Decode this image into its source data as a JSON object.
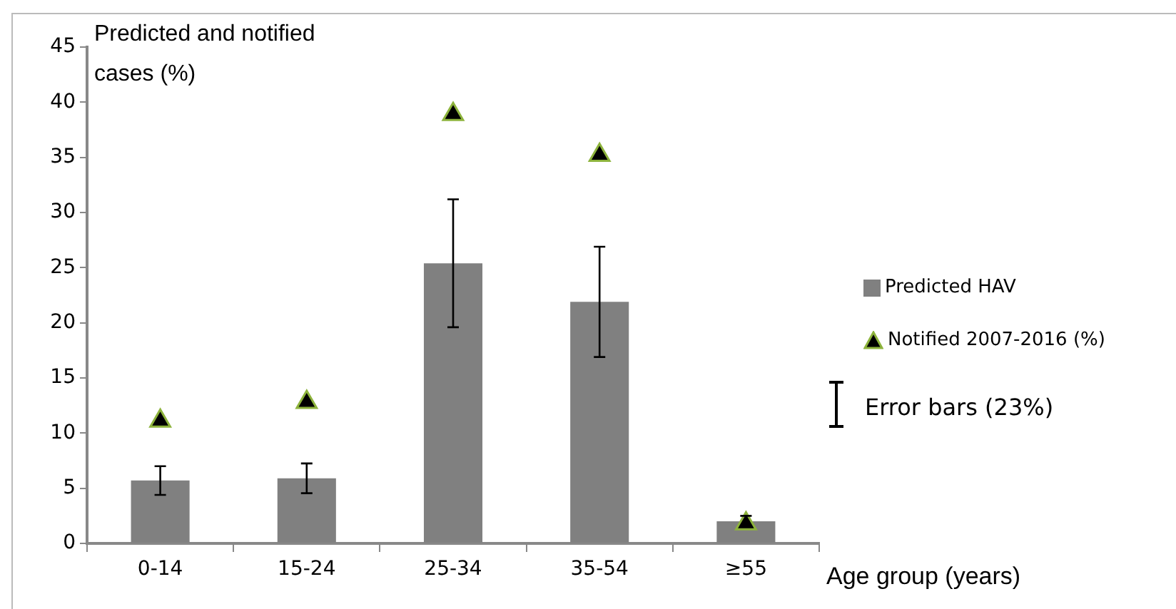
{
  "chart_data": {
    "type": "bar",
    "ylabel": "Predicted and notified cases (%)",
    "xlabel": "Age group (years)",
    "categories": [
      "0-14",
      "15-24",
      "25-34",
      "35-54",
      "≥55"
    ],
    "series": [
      {
        "name": "Predicted HAV",
        "color": "#808080",
        "values": [
          5.7,
          5.9,
          25.4,
          21.9,
          2.0
        ],
        "errors": [
          1.3,
          1.35,
          5.8,
          5.0,
          0.5
        ]
      },
      {
        "name": "Notified 2007-2016 (%)",
        "type": "scatter",
        "color": "#000000",
        "marker": "triangle",
        "values": [
          11.1,
          12.8,
          38.9,
          35.2,
          1.8
        ]
      }
    ],
    "ylim": [
      0,
      45
    ],
    "yticks": [
      0,
      5,
      10,
      15,
      20,
      25,
      30,
      35,
      40,
      45
    ],
    "grid": false,
    "legend": "right",
    "annotations": [
      "Error bars (23%)"
    ]
  }
}
